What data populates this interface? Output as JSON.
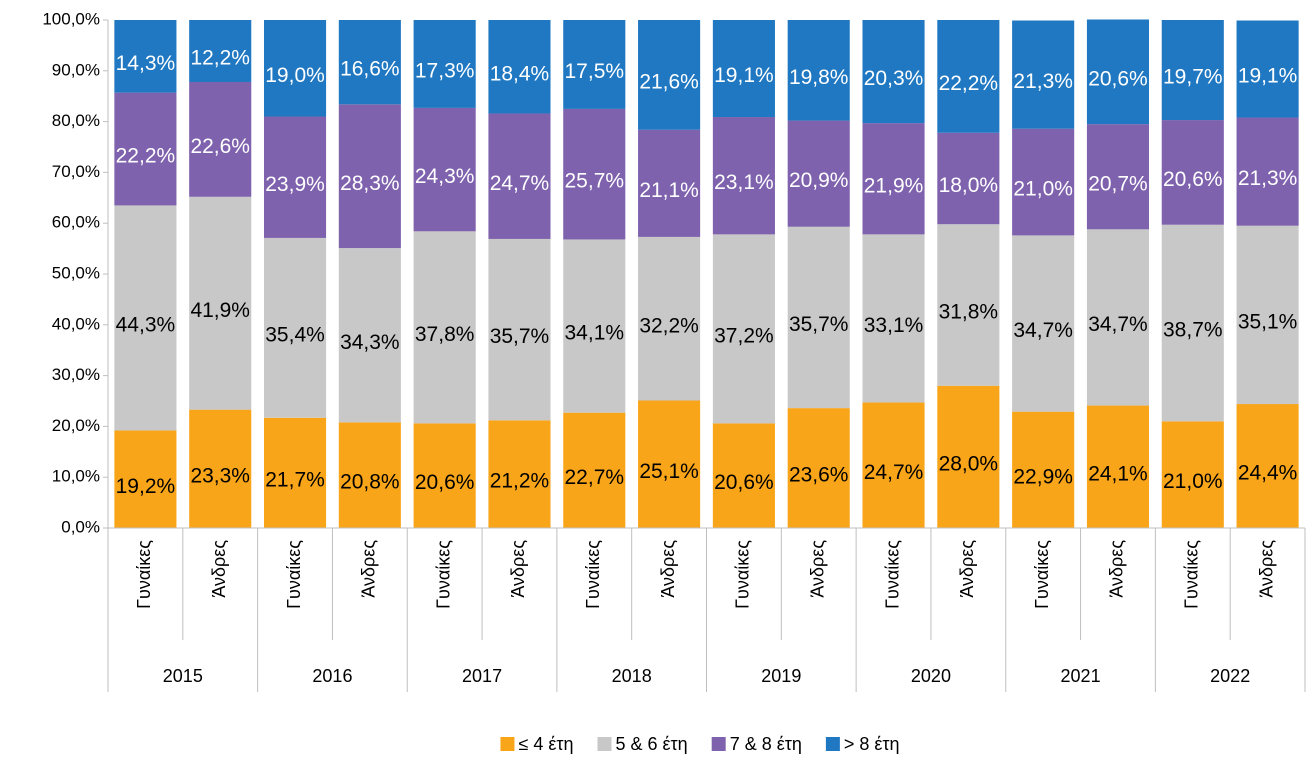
{
  "chart_data": {
    "type": "stacked_bar",
    "categories": [
      "Γυναίκες",
      "Άνδρες",
      "Γυναίκες",
      "Άνδρες",
      "Γυναίκες",
      "Άνδρες",
      "Γυναίκες",
      "Άνδρες",
      "Γυναίκες",
      "Άνδρες",
      "Γυναίκες",
      "Άνδρες",
      "Γυναίκες",
      "Άνδρες",
      "Γυναίκες",
      "Άνδρες"
    ],
    "groups": [
      "2015",
      "2016",
      "2017",
      "2018",
      "2019",
      "2020",
      "2021",
      "2022"
    ],
    "ylim": [
      0,
      100
    ],
    "yticks": [
      {
        "value": 0,
        "label": "0,0%"
      },
      {
        "value": 10,
        "label": "10,0%"
      },
      {
        "value": 20,
        "label": "20,0%"
      },
      {
        "value": 30,
        "label": "30,0%"
      },
      {
        "value": 40,
        "label": "40,0%"
      },
      {
        "value": 50,
        "label": "50,0%"
      },
      {
        "value": 60,
        "label": "60,0%"
      },
      {
        "value": 70,
        "label": "70,0%"
      },
      {
        "value": 80,
        "label": "80,0%"
      },
      {
        "value": 90,
        "label": "90,0%"
      },
      {
        "value": 100,
        "label": "100,0%"
      }
    ],
    "legend": "bottom",
    "series": [
      {
        "name": "≤ 4 έτη",
        "color": "#f9a51a",
        "label_color": "#000000",
        "values": [
          19.2,
          23.3,
          21.7,
          20.8,
          20.6,
          21.2,
          22.7,
          25.1,
          20.6,
          23.6,
          24.7,
          28.0,
          22.9,
          24.1,
          21.0,
          24.4
        ],
        "value_labels": [
          "19,2%",
          "23,3%",
          "21,7%",
          "20,8%",
          "20,6%",
          "21,2%",
          "22,7%",
          "25,1%",
          "20,6%",
          "23,6%",
          "24,7%",
          "28,0%",
          "22,9%",
          "24,1%",
          "21,0%",
          "24,4%"
        ]
      },
      {
        "name": "5 & 6 έτη",
        "color": "#c8c8c8",
        "label_color": "#000000",
        "values": [
          44.3,
          41.9,
          35.4,
          34.3,
          37.8,
          35.7,
          34.1,
          32.2,
          37.2,
          35.7,
          33.1,
          31.8,
          34.7,
          34.7,
          38.7,
          35.1
        ],
        "value_labels": [
          "44,3%",
          "41,9%",
          "35,4%",
          "34,3%",
          "37,8%",
          "35,7%",
          "34,1%",
          "32,2%",
          "37,2%",
          "35,7%",
          "33,1%",
          "31,8%",
          "34,7%",
          "34,7%",
          "38,7%",
          "35,1%"
        ]
      },
      {
        "name": "7 & 8 έτη",
        "color": "#7f62ad",
        "label_color": "#ffffff",
        "values": [
          22.2,
          22.6,
          23.9,
          28.3,
          24.3,
          24.7,
          25.7,
          21.1,
          23.1,
          20.9,
          21.9,
          18.0,
          21.0,
          20.7,
          20.6,
          21.3
        ],
        "value_labels": [
          "22,2%",
          "22,6%",
          "23,9%",
          "28,3%",
          "24,3%",
          "24,7%",
          "25,7%",
          "21,1%",
          "23,1%",
          "20,9%",
          "21,9%",
          "18,0%",
          "21,0%",
          "20,7%",
          "20,6%",
          "21,3%"
        ]
      },
      {
        "name": "> 8 έτη",
        "color": "#1f78c1",
        "label_color": "#ffffff",
        "values": [
          14.3,
          12.2,
          19.0,
          16.6,
          17.3,
          18.4,
          17.5,
          21.6,
          19.1,
          19.8,
          20.3,
          22.2,
          21.3,
          20.6,
          19.7,
          19.1
        ],
        "value_labels": [
          "14,3%",
          "12,2%",
          "19,0%",
          "16,6%",
          "17,3%",
          "18,4%",
          "17,5%",
          "21,6%",
          "19,1%",
          "19,8%",
          "20,3%",
          "22,2%",
          "21,3%",
          "20,6%",
          "19,7%",
          "19,1%"
        ]
      }
    ]
  }
}
